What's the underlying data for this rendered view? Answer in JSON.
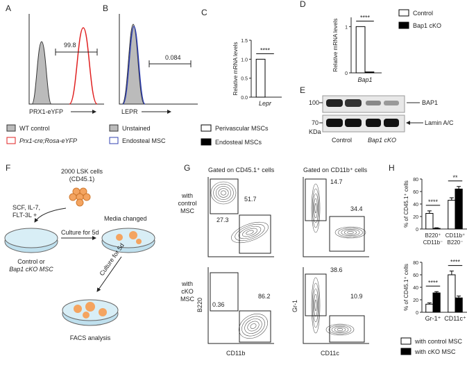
{
  "panels": {
    "A": {
      "label": "A",
      "gate": "99.8",
      "x_label": "PRX1-eYFP",
      "legend": [
        "WT control",
        "Prx1-cre;Rosa-eYFP"
      ]
    },
    "B": {
      "label": "B",
      "gate": "0.084",
      "x_label": "LEPR",
      "legend": [
        "Unstained",
        "Endosteal MSC"
      ]
    },
    "C": {
      "label": "C"
    },
    "D": {
      "label": "D"
    },
    "E": {
      "label": "E",
      "markers": [
        "100",
        "70"
      ],
      "unit": "KDa",
      "bands": [
        "BAP1",
        "Lamin A/C"
      ],
      "lanes": [
        "Control",
        "Bap1 cKO"
      ]
    },
    "F": {
      "label": "F",
      "cells": [
        "2000 LSK cells",
        "(CD45.1)"
      ],
      "cytokines": [
        "SCF, IL-7,",
        "FLT-3L +"
      ],
      "step1": "Culture for 5d",
      "step2": "Media changed",
      "start": [
        "Control or",
        "Bap1 cKO MSC"
      ],
      "step3": "Culture for 5d",
      "end": "FACS analysis"
    },
    "G": {
      "label": "G",
      "gates": [
        "Gated on CD45.1⁺ cells",
        "Gated on CD11b⁺ cells"
      ],
      "rows": [
        [
          "with",
          "control",
          "MSC"
        ],
        [
          "with",
          "cKO",
          "MSC"
        ]
      ],
      "numbers": [
        "51.7",
        "27.3",
        "14.7",
        "34.4",
        "0.36",
        "86.2",
        "38.6",
        "10.9"
      ],
      "axes": [
        "B220",
        "CD11b",
        "Gr-1",
        "CD11c"
      ]
    },
    "H": {
      "label": "H"
    }
  },
  "chart_data": [
    {
      "type": "bar",
      "y_label": "Relative mRNA levels",
      "categories": [
        "Lepr"
      ],
      "significance": [
        "****"
      ],
      "series": [
        {
          "name": "Perivascular MSCs",
          "color": "#ffffff",
          "values": [
            1
          ]
        },
        {
          "name": "Endosteal MSCs",
          "color": "#000000",
          "values": [
            0
          ]
        }
      ],
      "ylim": [
        0,
        1.5
      ],
      "yticks": [
        {
          "value": 0,
          "label": "0.0"
        },
        {
          "value": 0.5,
          "label": "0.5"
        },
        {
          "value": 1,
          "label": "1.0"
        },
        {
          "value": 1.5,
          "label": "1.5"
        }
      ]
    },
    {
      "type": "bar",
      "y_label": "Relative mRNA levels",
      "categories": [
        "Bap1"
      ],
      "significance": [
        "****"
      ],
      "series": [
        {
          "name": "Control",
          "color": "#ffffff",
          "values": [
            1
          ]
        },
        {
          "name": "Bap1 cKO",
          "color": "#000000",
          "values": [
            0.02
          ]
        }
      ],
      "ylim": [
        0,
        1.2
      ],
      "yticks": [
        0,
        1
      ]
    },
    {
      "type": "bar",
      "y_label": "% of CD45.1⁺ cells",
      "categories": [
        [
          "B220⁺",
          "CD11b⁻"
        ],
        [
          "CD11b⁺",
          "B220⁻"
        ]
      ],
      "significance": [
        "****",
        "**"
      ],
      "series": [
        {
          "name": "with control MSC",
          "color": "#ffffff",
          "values": [
            25,
            46
          ],
          "errors": [
            4,
            4
          ]
        },
        {
          "name": "with cKO MSC",
          "color": "#000000",
          "values": [
            1,
            64
          ],
          "errors": [
            1,
            4
          ]
        }
      ],
      "ylim": [
        0,
        80
      ],
      "yticks": [
        0,
        20,
        40,
        60,
        80
      ]
    },
    {
      "type": "bar",
      "y_label": "% of CD45.1⁺ cells",
      "categories": [
        "Gr-1⁺",
        "CD11c⁺"
      ],
      "significance": [
        "****",
        "****"
      ],
      "series": [
        {
          "name": "with control MSC",
          "color": "#ffffff",
          "values": [
            13,
            60
          ],
          "errors": [
            2,
            6
          ]
        },
        {
          "name": "with cKO MSC",
          "color": "#000000",
          "values": [
            31,
            23
          ],
          "errors": [
            2,
            3
          ]
        }
      ],
      "ylim": [
        0,
        80
      ],
      "yticks": [
        0,
        20,
        40,
        60,
        80
      ]
    }
  ]
}
